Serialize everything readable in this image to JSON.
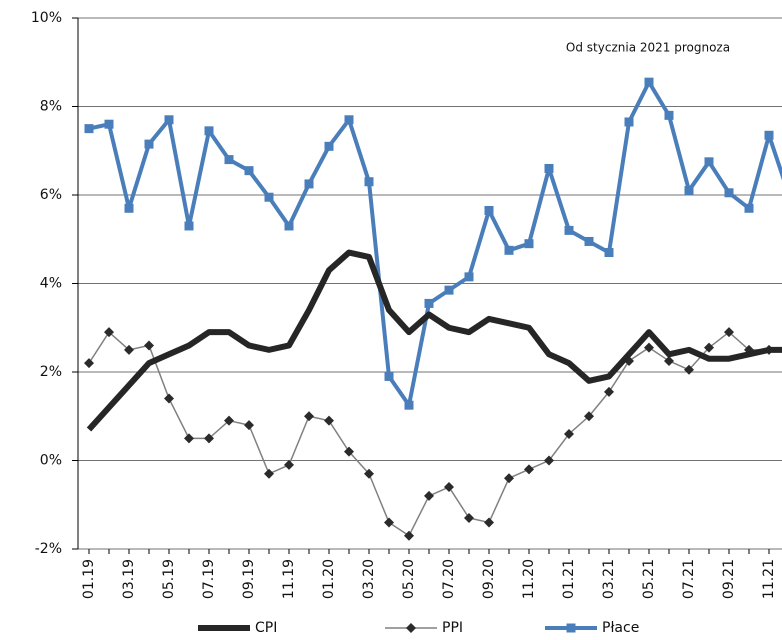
{
  "chart_data": {
    "type": "line",
    "annotation": "Od stycznia 2021 prognoza",
    "categories": [
      "01.19",
      null,
      "03.19",
      null,
      "05.19",
      null,
      "07.19",
      null,
      "09.19",
      null,
      "11.19",
      null,
      "01.20",
      null,
      "03.20",
      null,
      "05.20",
      null,
      "07.20",
      null,
      "09.20",
      null,
      "11.20",
      null,
      "01.21",
      null,
      "03.21",
      null,
      "05.21",
      null,
      "07.21",
      null,
      "09.21",
      null,
      "11.21",
      null
    ],
    "series": [
      {
        "name": "CPI",
        "color": "#262626",
        "marker": "none",
        "linewidth": 6,
        "values": [
          0.7,
          1.2,
          1.7,
          2.2,
          2.4,
          2.6,
          2.9,
          2.9,
          2.6,
          2.5,
          2.6,
          3.4,
          4.3,
          4.7,
          4.6,
          3.4,
          2.9,
          3.3,
          3.0,
          2.9,
          3.2,
          3.1,
          3.0,
          2.4,
          2.2,
          1.8,
          1.9,
          2.4,
          2.9,
          2.4,
          2.5,
          2.3,
          2.3,
          2.4,
          2.5,
          2.5
        ]
      },
      {
        "name": "PPI",
        "color": "#808080",
        "marker": "diamond",
        "linewidth": 1.5,
        "values": [
          2.2,
          2.9,
          2.5,
          2.6,
          1.4,
          0.5,
          0.5,
          0.9,
          0.8,
          -0.3,
          -0.1,
          1.0,
          0.9,
          0.2,
          -0.3,
          -1.4,
          -1.7,
          -0.8,
          -0.6,
          -1.3,
          -1.4,
          -0.4,
          -0.2,
          0.0,
          0.6,
          1.0,
          1.55,
          2.25,
          2.55,
          2.25,
          2.05,
          2.55,
          2.9,
          2.5,
          2.5,
          2.5
        ]
      },
      {
        "name": "Płace",
        "color": "#4a7ebb",
        "marker": "square",
        "linewidth": 4,
        "values": [
          7.5,
          7.6,
          5.7,
          7.15,
          7.7,
          5.3,
          7.45,
          6.8,
          6.55,
          5.95,
          5.3,
          6.25,
          7.1,
          7.7,
          6.3,
          1.9,
          1.25,
          3.55,
          3.85,
          4.15,
          5.65,
          4.75,
          4.9,
          6.6,
          5.2,
          4.95,
          4.7,
          7.65,
          8.55,
          7.8,
          6.1,
          6.75,
          6.05,
          5.7,
          7.35,
          6.0
        ]
      }
    ],
    "ylim": [
      -2,
      10
    ],
    "yticks": [
      {
        "value": -2,
        "label": "-2%"
      },
      {
        "value": 0,
        "label": "0%"
      },
      {
        "value": 2,
        "label": "2%"
      },
      {
        "value": 4,
        "label": "4%"
      },
      {
        "value": 6,
        "label": "6%"
      },
      {
        "value": 8,
        "label": "8%"
      },
      {
        "value": 10,
        "label": "10%"
      }
    ],
    "grid": true
  }
}
